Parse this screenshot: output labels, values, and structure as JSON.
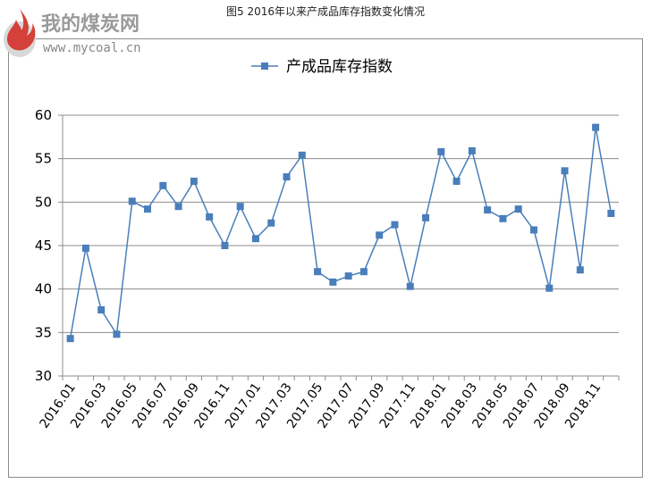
{
  "figure_title": "图5  2016年以来产成品库存指数变化情况",
  "watermark": {
    "name": "我的煤炭网",
    "site": "www.mycoal.cn"
  },
  "chart_data": {
    "type": "line",
    "title": "",
    "xlabel": "",
    "ylabel": "",
    "ylim": [
      30,
      60
    ],
    "y_ticks": [
      30,
      35,
      40,
      45,
      50,
      55,
      60
    ],
    "grid": true,
    "legend_position": "top",
    "x_tick_labels": [
      "2016.01",
      "2016.03",
      "2016.05",
      "2016.07",
      "2016.09",
      "2016.11",
      "2017.01",
      "2017.03",
      "2017.05",
      "2017.07",
      "2017.09",
      "2017.11",
      "2018.01",
      "2018.03",
      "2018.05",
      "2018.07",
      "2018.09",
      "2018.11"
    ],
    "categories": [
      "2016.01",
      "2016.02",
      "2016.03",
      "2016.04",
      "2016.05",
      "2016.06",
      "2016.07",
      "2016.08",
      "2016.09",
      "2016.10",
      "2016.11",
      "2016.12",
      "2017.01",
      "2017.02",
      "2017.03",
      "2017.04",
      "2017.05",
      "2017.06",
      "2017.07",
      "2017.08",
      "2017.09",
      "2017.10",
      "2017.11",
      "2017.12",
      "2018.01",
      "2018.02",
      "2018.03",
      "2018.04",
      "2018.05",
      "2018.06",
      "2018.07",
      "2018.08",
      "2018.09",
      "2018.10",
      "2018.11",
      "2018.12"
    ],
    "series": [
      {
        "name": "产成品库存指数",
        "color": "#4a7ebb",
        "values": [
          34.3,
          44.7,
          37.6,
          34.8,
          50.1,
          49.2,
          51.9,
          49.5,
          52.4,
          48.3,
          45.0,
          49.5,
          45.8,
          47.6,
          52.9,
          55.4,
          42.0,
          40.8,
          41.5,
          42.0,
          46.2,
          47.4,
          40.3,
          48.2,
          55.8,
          52.4,
          55.9,
          49.1,
          48.1,
          49.2,
          46.8,
          40.1,
          53.6,
          42.2,
          58.6,
          48.7
        ]
      }
    ]
  }
}
